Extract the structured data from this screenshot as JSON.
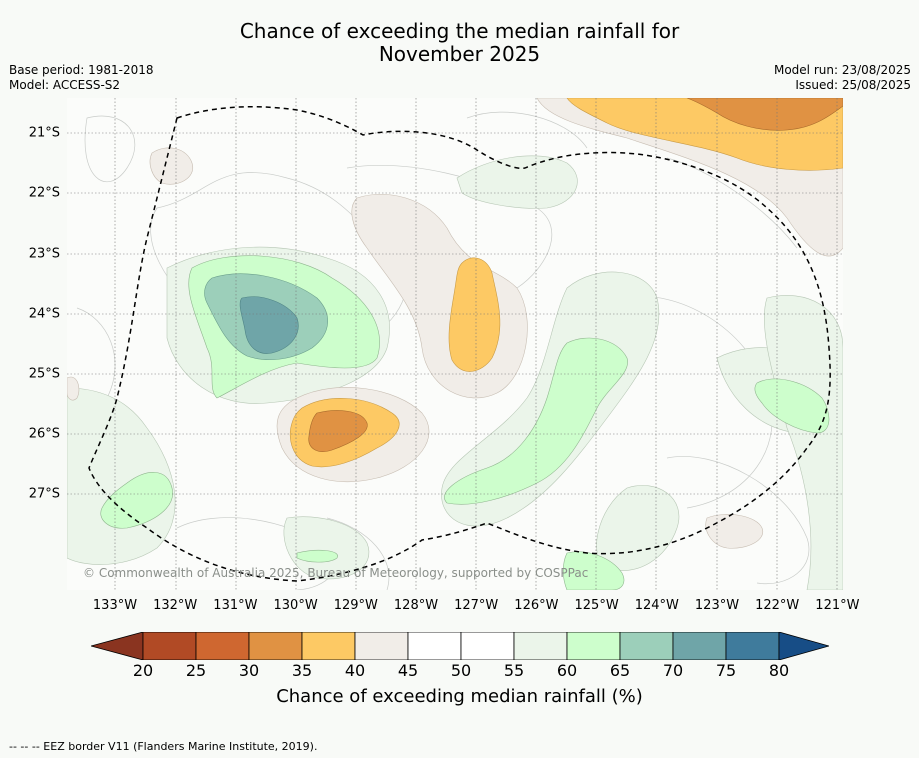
{
  "title_line1": "Chance of exceeding the median rainfall for",
  "title_line2": "November 2025",
  "base_period": "Base period: 1981-2018",
  "model": "Model: ACCESS-S2",
  "model_run": "Model run: 23/08/2025",
  "issued": "Issued: 25/08/2025",
  "copyright": "© Commonwealth of Australia 2025, Bureau of Meteorology, supported by COSPPac",
  "map": {
    "latitudes": [
      "21°S",
      "22°S",
      "23°S",
      "24°S",
      "25°S",
      "26°S",
      "27°S"
    ],
    "longitudes": [
      "133°W",
      "132°W",
      "131°W",
      "130°W",
      "129°W",
      "128°W",
      "127°W",
      "126°W",
      "125°W",
      "124°W",
      "123°W",
      "122°W",
      "121°W"
    ]
  },
  "colorbar": {
    "ticks": [
      "20",
      "25",
      "30",
      "35",
      "40",
      "45",
      "50",
      "55",
      "60",
      "65",
      "70",
      "75",
      "80"
    ],
    "colors": [
      "#b14a25",
      "#cf6730",
      "#e09243",
      "#fdc964",
      "#f1ede8",
      "#ffffff",
      "#ffffff",
      "#ebf5ea",
      "#cdfecc",
      "#9ccfba",
      "#6fa5a8",
      "#3f7b9c"
    ],
    "under_color": "#8a3420",
    "over_color": "#174d86",
    "label": "Chance of exceeding median rainfall (%)"
  },
  "legend_note": "--  --  -- EEZ border V11 (Flanders Marine Institute, 2019)."
}
